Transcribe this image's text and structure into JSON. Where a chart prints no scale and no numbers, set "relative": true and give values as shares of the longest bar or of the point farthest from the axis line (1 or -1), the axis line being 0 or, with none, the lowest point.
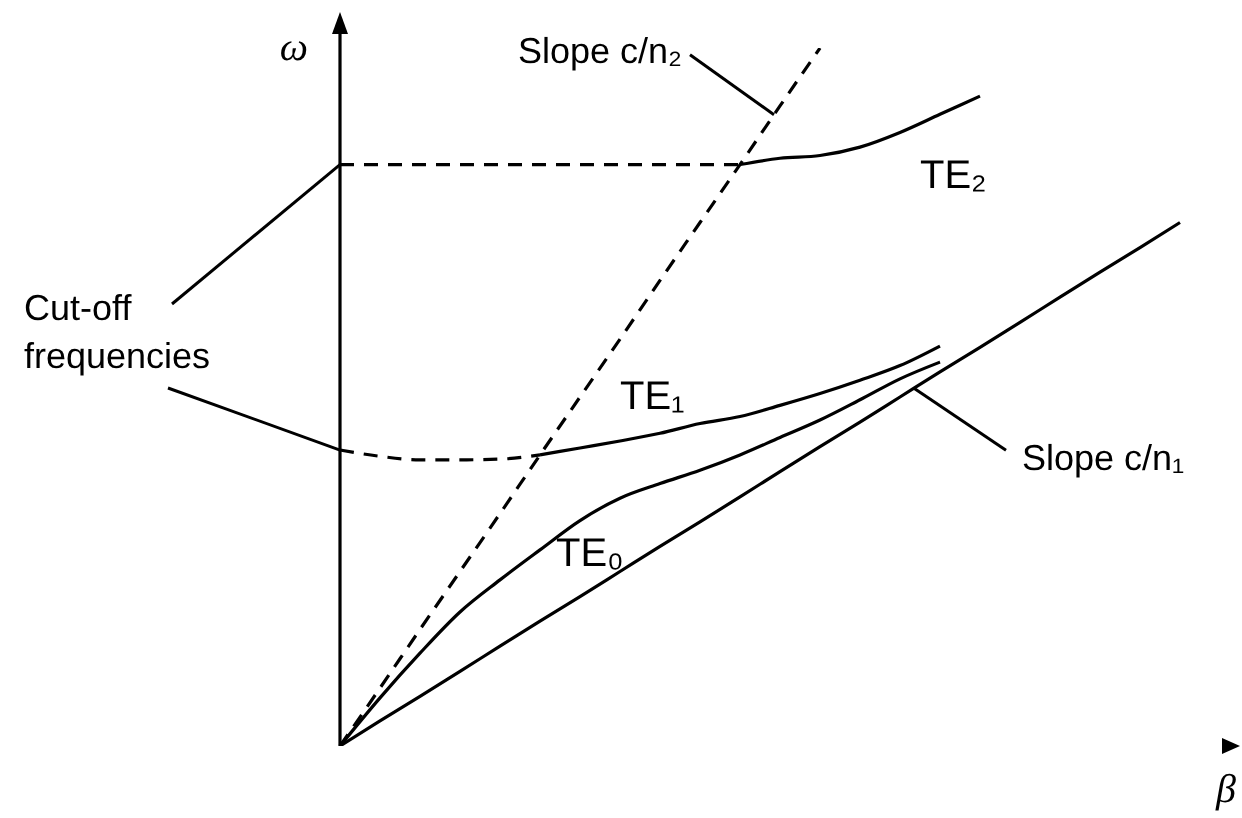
{
  "chart_data": {
    "type": "line",
    "relative": true,
    "xlabel": "β",
    "ylabel": "ω",
    "marker": "none",
    "annotations": [
      "Slope c/n₂",
      "Cut-off frequencies",
      "Slope c/n₁"
    ],
    "categories": [
      null,
      null,
      null,
      null,
      null,
      null,
      null,
      null,
      null,
      null,
      null,
      null,
      null,
      null,
      null,
      null,
      null,
      null,
      null,
      null,
      null,
      null,
      null
    ],
    "series": [
      {
        "color": "#000000",
        "line_style": "dashed",
        "values": [
          0,
          0.083,
          0.167,
          0.25,
          0.333,
          0.417,
          0.5,
          0.583,
          0.667,
          0.75,
          0.833,
          0.917,
          1,
          null,
          null,
          null,
          null,
          null,
          null,
          null,
          null,
          null,
          null
        ]
      },
      {
        "color": "#000000",
        "line_style": "solid",
        "values": [
          0,
          0.036,
          0.071,
          0.107,
          0.143,
          0.179,
          0.214,
          0.25,
          0.286,
          0.321,
          0.357,
          0.393,
          0.429,
          0.464,
          0.5,
          0.536,
          0.571,
          0.607,
          0.643,
          0.679,
          0.714,
          0.75,
          null
        ]
      },
      {
        "color": "#000000",
        "line_style": "dashed",
        "values": [
          0.833,
          0.833,
          0.833,
          0.833,
          0.833,
          0.833,
          0.833,
          0.833,
          0.833,
          0.833,
          0.833,
          null,
          null,
          null,
          null,
          null,
          null,
          null,
          null,
          null,
          null,
          null,
          null
        ]
      },
      {
        "name": "TE₂",
        "color": "#000000",
        "line_style": "solid",
        "values": [
          null,
          null,
          null,
          null,
          null,
          null,
          null,
          null,
          null,
          null,
          0.833,
          0.842,
          0.846,
          0.858,
          0.879,
          0.905,
          0.931,
          null,
          null,
          null,
          null,
          null,
          null
        ]
      },
      {
        "color": "#000000",
        "line_style": "dashed",
        "values": [
          0.424,
          0.415,
          0.41,
          0.41,
          0.411,
          0.417,
          null,
          null,
          null,
          null,
          null,
          null,
          null,
          null,
          null,
          null,
          null,
          null,
          null,
          null,
          null,
          null,
          null
        ]
      },
      {
        "name": "TE₁",
        "color": "#000000",
        "line_style": "solid",
        "values": [
          null,
          null,
          null,
          null,
          null,
          0.417,
          0.427,
          0.437,
          0.448,
          0.462,
          0.472,
          0.488,
          0.505,
          0.524,
          0.545,
          0.573,
          null,
          null,
          null,
          null,
          null,
          null,
          null
        ]
      },
      {
        "name": "TE₀",
        "color": "#000000",
        "line_style": "solid",
        "values": [
          0,
          0.069,
          0.133,
          0.192,
          0.238,
          0.281,
          0.323,
          0.355,
          0.376,
          0.395,
          0.417,
          0.442,
          0.467,
          0.496,
          0.526,
          0.55,
          null,
          null,
          null,
          null,
          null,
          null,
          null
        ]
      }
    ]
  }
}
